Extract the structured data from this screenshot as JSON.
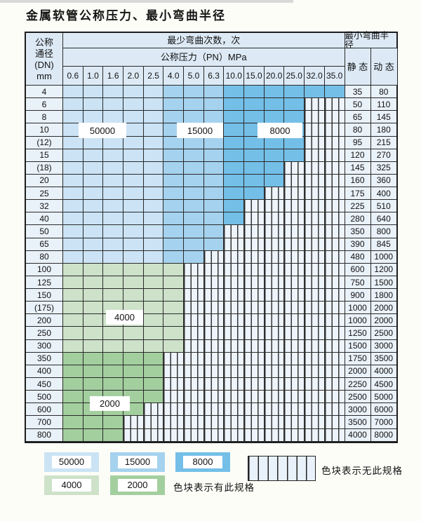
{
  "title": "金属软管公称压力、最小弯曲半径",
  "table": {
    "header": {
      "dn_lines": [
        "公称",
        "通径",
        "(DN)",
        "mm"
      ],
      "bend_times_label": "最少弯曲次数，次",
      "pressure_label": "公称压力（PN）MPa",
      "pressures": [
        "0.6",
        "1.0",
        "1.6",
        "2.0",
        "2.5",
        "4.0",
        "5.0",
        "6.3",
        "10.0",
        "15.0",
        "20.0",
        "25.0",
        "32.0",
        "35.0"
      ],
      "radius_label": "最小弯曲半径",
      "static_label": "静 态",
      "dynamic_label": "动 态"
    },
    "rows": [
      {
        "dn": "4",
        "group": "blue",
        "max_pn": "35.0",
        "static": "35",
        "dynamic": "80"
      },
      {
        "dn": "6",
        "group": "blue",
        "max_pn": "25.0",
        "static": "50",
        "dynamic": "110"
      },
      {
        "dn": "8",
        "group": "blue",
        "max_pn": "25.0",
        "static": "65",
        "dynamic": "145"
      },
      {
        "dn": "10",
        "group": "blue",
        "max_pn": "25.0",
        "static": "80",
        "dynamic": "180"
      },
      {
        "dn": "(12)",
        "group": "blue",
        "max_pn": "25.0",
        "static": "95",
        "dynamic": "215"
      },
      {
        "dn": "15",
        "group": "blue",
        "max_pn": "25.0",
        "static": "120",
        "dynamic": "270"
      },
      {
        "dn": "(18)",
        "group": "blue",
        "max_pn": "20.0",
        "static": "145",
        "dynamic": "325"
      },
      {
        "dn": "20",
        "group": "blue",
        "max_pn": "20.0",
        "static": "160",
        "dynamic": "360"
      },
      {
        "dn": "25",
        "group": "blue",
        "max_pn": "15.0",
        "static": "175",
        "dynamic": "400"
      },
      {
        "dn": "32",
        "group": "blue",
        "max_pn": "10.0",
        "static": "225",
        "dynamic": "510"
      },
      {
        "dn": "40",
        "group": "blue",
        "max_pn": "10.0",
        "static": "280",
        "dynamic": "640"
      },
      {
        "dn": "50",
        "group": "blue",
        "max_pn": "6.3",
        "static": "350",
        "dynamic": "800"
      },
      {
        "dn": "65",
        "group": "blue",
        "max_pn": "6.3",
        "static": "390",
        "dynamic": "845"
      },
      {
        "dn": "80",
        "group": "blue",
        "max_pn": "5.0",
        "static": "480",
        "dynamic": "1000"
      },
      {
        "dn": "100",
        "group": "g4000",
        "max_pn": "4.0",
        "static": "600",
        "dynamic": "1200"
      },
      {
        "dn": "125",
        "group": "g4000",
        "max_pn": "4.0",
        "static": "750",
        "dynamic": "1500"
      },
      {
        "dn": "150",
        "group": "g4000",
        "max_pn": "4.0",
        "static": "900",
        "dynamic": "1800"
      },
      {
        "dn": "(175)",
        "group": "g4000",
        "max_pn": "4.0",
        "static": "1000",
        "dynamic": "2000"
      },
      {
        "dn": "200",
        "group": "g4000",
        "max_pn": "4.0",
        "static": "1000",
        "dynamic": "2000"
      },
      {
        "dn": "250",
        "group": "g4000",
        "max_pn": "4.0",
        "static": "1250",
        "dynamic": "2500"
      },
      {
        "dn": "300",
        "group": "g4000",
        "max_pn": "4.0",
        "static": "1500",
        "dynamic": "3000"
      },
      {
        "dn": "350",
        "group": "g2000",
        "max_pn": "2.5",
        "static": "1750",
        "dynamic": "3500"
      },
      {
        "dn": "400",
        "group": "g2000",
        "max_pn": "2.5",
        "static": "2000",
        "dynamic": "4000"
      },
      {
        "dn": "450",
        "group": "g2000",
        "max_pn": "2.5",
        "static": "2250",
        "dynamic": "4500"
      },
      {
        "dn": "500",
        "group": "g2000",
        "max_pn": "2.5",
        "static": "2500",
        "dynamic": "5000"
      },
      {
        "dn": "600",
        "group": "g2000",
        "max_pn": "2.0",
        "static": "3000",
        "dynamic": "6000"
      },
      {
        "dn": "700",
        "group": "g2000",
        "max_pn": "1.6",
        "static": "3500",
        "dynamic": "7000"
      },
      {
        "dn": "800",
        "group": "g2000",
        "max_pn": "1.6",
        "static": "4000",
        "dynamic": "8000"
      }
    ],
    "blue_bands": {
      "c50000_last_pn": "2.5",
      "c15000_last_pn": "6.3",
      "c8000_last_pn": "35.0"
    },
    "overlay_labels": [
      "50000",
      "15000",
      "8000",
      "4000",
      "2000"
    ]
  },
  "legend": {
    "items": [
      {
        "label": "50000",
        "color_key": "c50000"
      },
      {
        "label": "15000",
        "color_key": "c15000"
      },
      {
        "label": "8000",
        "color_key": "c8000"
      },
      {
        "label": "4000",
        "color_key": "c4000"
      },
      {
        "label": "2000",
        "color_key": "c2000"
      }
    ],
    "has_spec_note": "色块表示有此规格",
    "no_spec_note": "色块表示无此规格"
  },
  "colors": {
    "c50000": "#cbe3f5",
    "c15000": "#a5d2ee",
    "c8000": "#74bfe8",
    "c4000": "#cde2c9",
    "c2000": "#a3cf9f",
    "hatch_bg": "#edf4fb",
    "header_bg": "#ddeaf6",
    "label_col_bg": "#e9f1f9",
    "grid_line": "#2a2a2a"
  }
}
